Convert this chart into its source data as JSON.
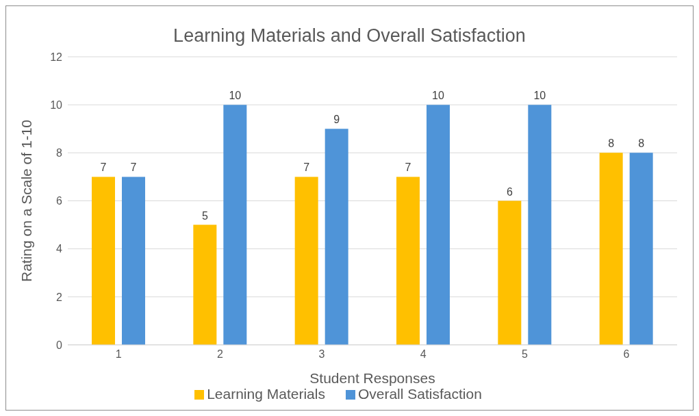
{
  "chart_data": {
    "type": "bar",
    "title": "Learning Materials and Overall Satisfaction",
    "xlabel": "Student Responses",
    "ylabel": "Rating on a Scale of 1-10",
    "categories": [
      "1",
      "2",
      "3",
      "4",
      "5",
      "6"
    ],
    "series": [
      {
        "name": "Learning Materials",
        "color": "#ffc000",
        "values": [
          7,
          5,
          7,
          7,
          6,
          8
        ]
      },
      {
        "name": "Overall Satisfaction",
        "color": "#4f94d8",
        "values": [
          7,
          10,
          9,
          10,
          10,
          8
        ]
      }
    ],
    "ylim": [
      0,
      12
    ],
    "yticks": [
      0,
      2,
      4,
      6,
      8,
      10,
      12
    ],
    "grid": "y",
    "legend": "bottom",
    "data_labels": true
  }
}
